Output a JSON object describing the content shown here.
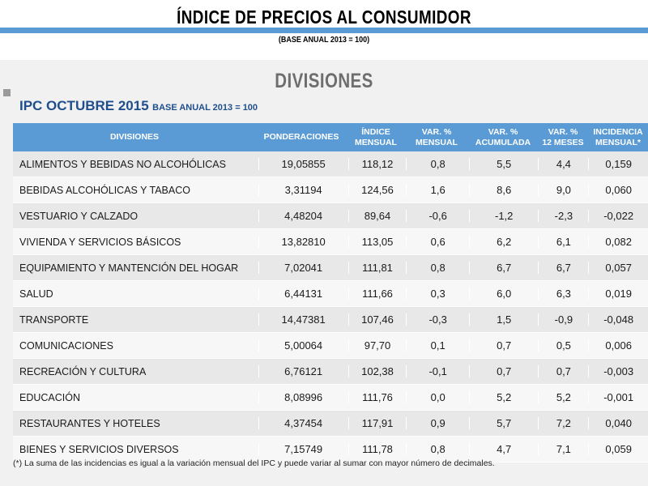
{
  "header": {
    "title": "ÍNDICE DE PRECIOS AL CONSUMIDOR",
    "subtitle": "(BASE ANUAL 2013 = 100)"
  },
  "section": {
    "heading": "DIVISIONES",
    "ipc_title": "IPC OCTUBRE 2015",
    "ipc_subtitle": "BASE ANUAL 2013 = 100"
  },
  "table": {
    "columns": [
      "DIVISIONES",
      "PONDERACIONES",
      "ÍNDICE\nMENSUAL",
      "VAR. %\nMENSUAL",
      "VAR. %\nACUMULADA",
      "VAR. %\n12 MESES",
      "INCIDENCIA\nMENSUAL*"
    ],
    "rows": [
      [
        "ALIMENTOS Y BEBIDAS NO ALCOHÓLICAS",
        "19,05855",
        "118,12",
        "0,8",
        "5,5",
        "4,4",
        "0,159"
      ],
      [
        "BEBIDAS ALCOHÓLICAS Y TABACO",
        "3,31194",
        "124,56",
        "1,6",
        "8,6",
        "9,0",
        "0,060"
      ],
      [
        "VESTUARIO Y CALZADO",
        "4,48204",
        "89,64",
        "-0,6",
        "-1,2",
        "-2,3",
        "-0,022"
      ],
      [
        "VIVIENDA Y SERVICIOS BÁSICOS",
        "13,82810",
        "113,05",
        "0,6",
        "6,2",
        "6,1",
        "0,082"
      ],
      [
        "EQUIPAMIENTO Y MANTENCIÓN DEL HOGAR",
        "7,02041",
        "111,81",
        "0,8",
        "6,7",
        "6,7",
        "0,057"
      ],
      [
        "SALUD",
        "6,44131",
        "111,66",
        "0,3",
        "6,0",
        "6,3",
        "0,019"
      ],
      [
        "TRANSPORTE",
        "14,47381",
        "107,46",
        "-0,3",
        "1,5",
        "-0,9",
        "-0,048"
      ],
      [
        "COMUNICACIONES",
        "5,00064",
        "97,70",
        "0,1",
        "0,7",
        "0,5",
        "0,006"
      ],
      [
        "RECREACIÓN Y CULTURA",
        "6,76121",
        "102,38",
        "-0,1",
        "0,7",
        "0,7",
        "-0,003"
      ],
      [
        "EDUCACIÓN",
        "8,08996",
        "111,76",
        "0,0",
        "5,2",
        "5,2",
        "-0,001"
      ],
      [
        "RESTAURANTES Y HOTELES",
        "4,37454",
        "117,91",
        "0,9",
        "5,7",
        "7,2",
        "0,040"
      ],
      [
        "BIENES Y SERVICIOS DIVERSOS",
        "7,15749",
        "111,78",
        "0,8",
        "4,7",
        "7,1",
        "0,059"
      ]
    ]
  },
  "footnote": "(*) La suma de las incidencias es igual a la variación mensual del IPC y puede variar al sumar con mayor número de decimales."
}
